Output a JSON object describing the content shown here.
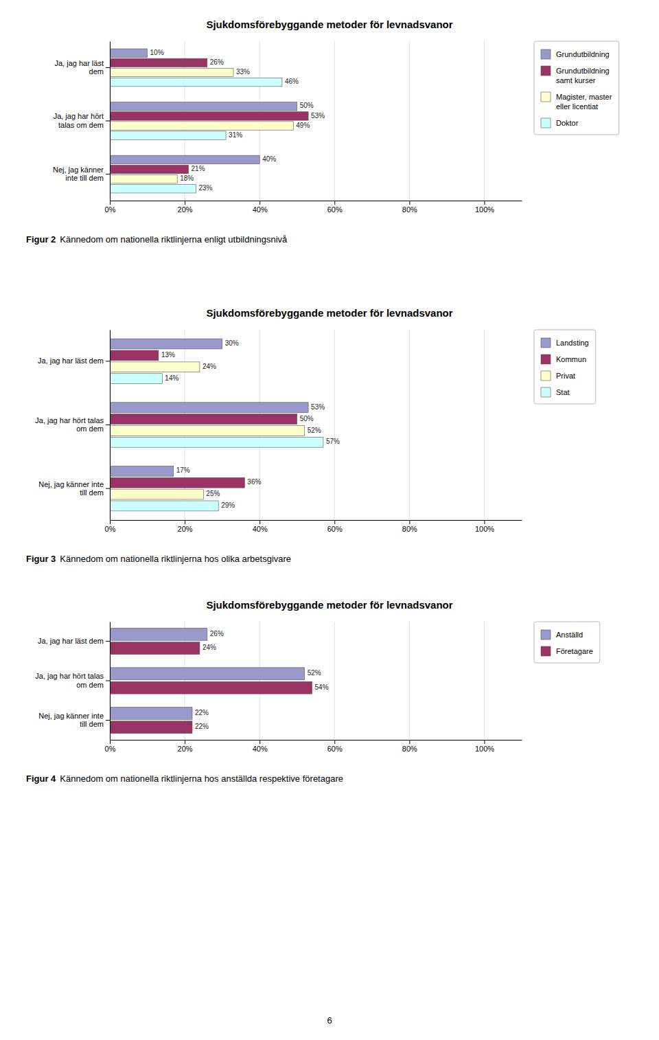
{
  "chart_data": [
    {
      "type": "bar",
      "orientation": "horizontal",
      "title": "Sjukdomsförebyggande metoder för levnadsvanor",
      "categories": [
        "Nej, jag känner\ninte till dem",
        "Ja, jag har hört\ntalas om dem",
        "Ja, jag har läst\ndem"
      ],
      "series": [
        {
          "name": "Grundutbildning",
          "color": "#9999CC",
          "values": [
            40,
            50,
            10
          ],
          "value_labels": [
            "40%",
            "50%",
            "10%"
          ]
        },
        {
          "name": "Grundutbildning\nsamt kurser",
          "color": "#993366",
          "values": [
            21,
            53,
            26
          ],
          "value_labels": [
            "21%",
            "53%",
            "26%"
          ]
        },
        {
          "name": "Magister, master\neller licentiat",
          "color": "#FFFFCC",
          "values": [
            18,
            49,
            33
          ],
          "value_labels": [
            "18%",
            "49%",
            "33%"
          ]
        },
        {
          "name": "Doktor",
          "color": "#CCFFFF",
          "values": [
            23,
            31,
            46
          ],
          "value_labels": [
            "23%",
            "31%",
            "46%"
          ]
        }
      ],
      "xlim": [
        0,
        110
      ],
      "xticks": [
        {
          "value": 0,
          "label": "0%"
        },
        {
          "value": 20,
          "label": "20%"
        },
        {
          "value": 40,
          "label": "40%"
        },
        {
          "value": 60,
          "label": "60%"
        },
        {
          "value": 80,
          "label": "80%"
        },
        {
          "value": 100,
          "label": "100%"
        }
      ],
      "grid": true,
      "legend": "right",
      "data_labels": true,
      "annotations": [
        "Figur 2",
        "Kännedom om nationella riktlinjerna enligt utbildningsnivå"
      ]
    },
    {
      "type": "bar",
      "orientation": "horizontal",
      "title": "Sjukdomsförebyggande metoder för levnadsvanor",
      "categories": [
        "Nej, jag känner inte\ntill dem",
        "Ja, jag har hört talas\nom dem",
        "Ja, jag har läst dem"
      ],
      "series": [
        {
          "name": "Landsting",
          "color": "#9999CC",
          "values": [
            17,
            53,
            30
          ],
          "value_labels": [
            "17%",
            "53%",
            "30%"
          ]
        },
        {
          "name": "Kommun",
          "color": "#993366",
          "values": [
            36,
            50,
            13
          ],
          "value_labels": [
            "36%",
            "50%",
            "13%"
          ]
        },
        {
          "name": "Privat",
          "color": "#FFFFCC",
          "values": [
            25,
            52,
            24
          ],
          "value_labels": [
            "25%",
            "52%",
            "24%"
          ]
        },
        {
          "name": "Stat",
          "color": "#CCFFFF",
          "values": [
            29,
            57,
            14
          ],
          "value_labels": [
            "29%",
            "57%",
            "14%"
          ]
        }
      ],
      "xlim": [
        0,
        110
      ],
      "xticks": [
        {
          "value": 0,
          "label": "0%"
        },
        {
          "value": 20,
          "label": "20%"
        },
        {
          "value": 40,
          "label": "40%"
        },
        {
          "value": 60,
          "label": "60%"
        },
        {
          "value": 80,
          "label": "80%"
        },
        {
          "value": 100,
          "label": "100%"
        }
      ],
      "grid": true,
      "legend": "right",
      "data_labels": true,
      "annotations": [
        "Figur 3",
        "Kännedom om nationella riktlinjerna hos olika arbetsgivare"
      ]
    },
    {
      "type": "bar",
      "orientation": "horizontal",
      "title": "Sjukdomsförebyggande metoder för levnadsvanor",
      "categories": [
        "Nej, jag känner inte\ntill dem",
        "Ja, jag har hört talas\nom dem",
        "Ja, jag har läst dem"
      ],
      "series": [
        {
          "name": "Anställd",
          "color": "#9999CC",
          "values": [
            22,
            52,
            26
          ],
          "value_labels": [
            "22%",
            "52%",
            "26%"
          ]
        },
        {
          "name": "Företagare",
          "color": "#993366",
          "values": [
            22,
            54,
            24
          ],
          "value_labels": [
            "22%",
            "54%",
            "24%"
          ]
        }
      ],
      "xlim": [
        0,
        110
      ],
      "xticks": [
        {
          "value": 0,
          "label": "0%"
        },
        {
          "value": 20,
          "label": "20%"
        },
        {
          "value": 40,
          "label": "40%"
        },
        {
          "value": 60,
          "label": "60%"
        },
        {
          "value": 80,
          "label": "80%"
        },
        {
          "value": 100,
          "label": "100%"
        }
      ],
      "grid": true,
      "legend": "right",
      "data_labels": true,
      "annotations": [
        "Figur 4",
        "Kännedom om nationella riktlinjerna hos anställda respektive företagare"
      ]
    }
  ],
  "annotations": [
    "6"
  ]
}
